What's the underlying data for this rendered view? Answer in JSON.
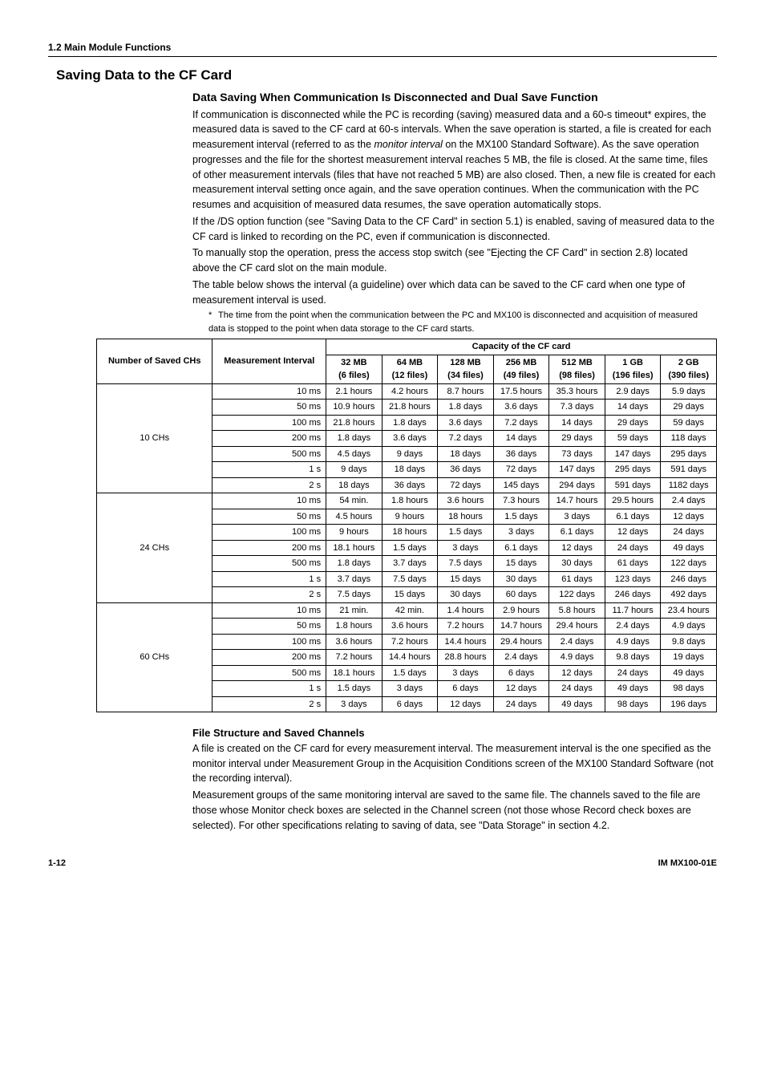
{
  "header_section": "1.2  Main Module Functions",
  "main_title": "Saving Data to the CF Card",
  "sub_title_1": "Data Saving When Communication Is Disconnected and Dual Save Function",
  "para1": "If communication is disconnected while the PC is recording (saving) measured data and a 60-s timeout* expires, the measured data is saved to the CF card at 60-s intervals. When the save operation is started, a file is created for each measurement interval (referred to as the ",
  "para1_it": "monitor interval",
  "para1b": " on the MX100 Standard Software). As the save operation progresses and the file for the shortest measurement interval reaches 5 MB, the file is closed. At the same time, files of other measurement intervals (files that have not reached 5 MB) are also closed. Then, a new file is created for each measurement interval setting once again, and the save operation continues. When the communication with the PC resumes and acquisition of measured data resumes, the save operation automatically stops.",
  "para2": "If the /DS option function (see \"Saving Data to the CF Card\" in section 5.1) is enabled, saving of measured data to the CF card is linked to recording on the PC, even if communication is disconnected.",
  "para3": "To manually stop the operation, press the access stop switch (see \"Ejecting the CF Card\" in section 2.8) located above the CF card slot on the main module.",
  "para4": "The table below shows the interval (a guideline) over which data can be saved to the CF card when one type of measurement interval is used.",
  "footnote": "The time from the point when the communication between the PC and MX100 is disconnected and acquisition of measured data is stopped to the point when data storage to the CF card starts.",
  "table": {
    "head_group": {
      "no_saved": "Number of Saved CHs",
      "meas_int": "Measurement Interval",
      "cap": "Capacity of the CF card"
    },
    "caps": [
      {
        "s": "32 MB",
        "f": "(6 files)"
      },
      {
        "s": "64 MB",
        "f": "(12 files)"
      },
      {
        "s": "128 MB",
        "f": "(34 files)"
      },
      {
        "s": "256 MB",
        "f": "(49 files)"
      },
      {
        "s": "512 MB",
        "f": "(98 files)"
      },
      {
        "s": "1 GB",
        "f": "(196 files)"
      },
      {
        "s": "2 GB",
        "f": "(390 files)"
      }
    ],
    "groups": [
      {
        "label": "10 CHs",
        "rows": [
          {
            "i": "10 ms",
            "v": [
              "2.1 hours",
              "4.2 hours",
              "8.7 hours",
              "17.5 hours",
              "35.3 hours",
              "2.9 days",
              "5.9 days"
            ]
          },
          {
            "i": "50 ms",
            "v": [
              "10.9 hours",
              "21.8 hours",
              "1.8 days",
              "3.6 days",
              "7.3 days",
              "14 days",
              "29 days"
            ]
          },
          {
            "i": "100 ms",
            "v": [
              "21.8 hours",
              "1.8 days",
              "3.6 days",
              "7.2 days",
              "14 days",
              "29 days",
              "59 days"
            ]
          },
          {
            "i": "200 ms",
            "v": [
              "1.8 days",
              "3.6 days",
              "7.2 days",
              "14 days",
              "29 days",
              "59 days",
              "118 days"
            ]
          },
          {
            "i": "500 ms",
            "v": [
              "4.5 days",
              "9 days",
              "18 days",
              "36 days",
              "73 days",
              "147 days",
              "295 days"
            ]
          },
          {
            "i": "1 s",
            "v": [
              "9 days",
              "18 days",
              "36 days",
              "72 days",
              "147 days",
              "295 days",
              "591 days"
            ]
          },
          {
            "i": "2 s",
            "v": [
              "18 days",
              "36 days",
              "72 days",
              "145 days",
              "294 days",
              "591 days",
              "1182 days"
            ]
          }
        ]
      },
      {
        "label": "24 CHs",
        "rows": [
          {
            "i": "10 ms",
            "v": [
              "54 min.",
              "1.8 hours",
              "3.6 hours",
              "7.3 hours",
              "14.7 hours",
              "29.5 hours",
              "2.4 days"
            ]
          },
          {
            "i": "50 ms",
            "v": [
              "4.5 hours",
              "9 hours",
              "18 hours",
              "1.5 days",
              "3 days",
              "6.1 days",
              "12 days"
            ]
          },
          {
            "i": "100 ms",
            "v": [
              "9 hours",
              "18 hours",
              "1.5 days",
              "3 days",
              "6.1 days",
              "12 days",
              "24 days"
            ]
          },
          {
            "i": "200 ms",
            "v": [
              "18.1 hours",
              "1.5 days",
              "3 days",
              "6.1 days",
              "12 days",
              "24 days",
              "49 days"
            ]
          },
          {
            "i": "500 ms",
            "v": [
              "1.8 days",
              "3.7 days",
              "7.5 days",
              "15 days",
              "30 days",
              "61 days",
              "122 days"
            ]
          },
          {
            "i": "1 s",
            "v": [
              "3.7 days",
              "7.5 days",
              "15 days",
              "30 days",
              "61 days",
              "123 days",
              "246 days"
            ]
          },
          {
            "i": "2 s",
            "v": [
              "7.5 days",
              "15 days",
              "30 days",
              "60 days",
              "122 days",
              "246 days",
              "492 days"
            ]
          }
        ]
      },
      {
        "label": "60 CHs",
        "rows": [
          {
            "i": "10 ms",
            "v": [
              "21 min.",
              "42 min.",
              "1.4 hours",
              "2.9 hours",
              "5.8 hours",
              "11.7 hours",
              "23.4 hours"
            ]
          },
          {
            "i": "50 ms",
            "v": [
              "1.8 hours",
              "3.6 hours",
              "7.2 hours",
              "14.7 hours",
              "29.4 hours",
              "2.4 days",
              "4.9 days"
            ]
          },
          {
            "i": "100 ms",
            "v": [
              "3.6 hours",
              "7.2 hours",
              "14.4 hours",
              "29.4 hours",
              "2.4 days",
              "4.9 days",
              "9.8 days"
            ]
          },
          {
            "i": "200 ms",
            "v": [
              "7.2 hours",
              "14.4 hours",
              "28.8 hours",
              "2.4 days",
              "4.9 days",
              "9.8 days",
              "19 days"
            ]
          },
          {
            "i": "500 ms",
            "v": [
              "18.1 hours",
              "1.5 days",
              "3 days",
              "6 days",
              "12 days",
              "24 days",
              "49 days"
            ]
          },
          {
            "i": "1 s",
            "v": [
              "1.5 days",
              "3 days",
              "6 days",
              "12 days",
              "24 days",
              "49 days",
              "98 days"
            ]
          },
          {
            "i": "2 s",
            "v": [
              "3 days",
              "6 days",
              "12 days",
              "24 days",
              "49 days",
              "98 days",
              "196 days"
            ]
          }
        ]
      }
    ]
  },
  "file_title": "File Structure and Saved Channels",
  "file_para1": "A file is created on the CF card for every measurement interval. The measurement interval is the one specified as the monitor interval under Measurement Group in the Acquisition Conditions screen of the MX100 Standard Software (not the recording interval).",
  "file_para2": "Measurement groups of the same monitoring interval are saved to the same file. The channels saved to the file are those whose Monitor check boxes are selected in the Channel screen (not those whose Record check boxes are selected). For other specifications relating to saving of data, see \"Data Storage\" in section 4.2.",
  "footer_left": "1-12",
  "footer_right": "IM MX100-01E"
}
